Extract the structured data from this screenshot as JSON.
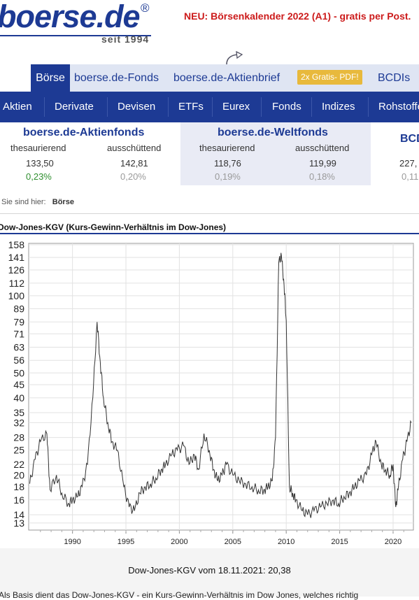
{
  "header": {
    "logo_text": "boerse.de",
    "logo_mark": "®",
    "since": "seit 1994",
    "promo": "NEU: Börsenkalender 2022 (A1) - gratis per Post."
  },
  "tabs": [
    {
      "label": "Börse",
      "active": true
    },
    {
      "label": "boerse.de-Fonds",
      "active": false
    },
    {
      "label": "boerse.de-Aktienbrief",
      "active": false
    },
    {
      "label": "BCDIs",
      "active": false
    }
  ],
  "tab_badge": "2x Gratis- PDF!",
  "nav": [
    "Aktien",
    "Derivate",
    "Devisen",
    "ETFs",
    "Eurex",
    "Fonds",
    "Indizes",
    "Rohstoffe"
  ],
  "funds": [
    {
      "title": "boerse.de-Aktienfonds",
      "sub": [
        "thesaurierend",
        "ausschüttend"
      ],
      "values": [
        "133,50",
        "142,81"
      ],
      "changes": [
        "0,23%",
        "0,20%"
      ]
    },
    {
      "title": "boerse.de-Weltfonds",
      "sub": [
        "thesaurierend",
        "ausschüttend"
      ],
      "values": [
        "118,76",
        "119,99"
      ],
      "changes": [
        "0,19%",
        "0,18%"
      ]
    },
    {
      "title": "BCDI",
      "values": [
        "227,"
      ],
      "changes": [
        "0,11"
      ]
    }
  ],
  "breadcrumb": {
    "prefix": "Sie sind hier:",
    "current": "Börse"
  },
  "chart_title": "Dow-Jones-KGV (Kurs-Gewinn-Verhältnis im Dow-Jones)",
  "chart_data": {
    "type": "line",
    "title": "Dow-Jones-KGV (Kurs-Gewinn-Verhältnis im Dow-Jones)",
    "y_scale": "log",
    "yticks": [
      158,
      141,
      126,
      112,
      100,
      89,
      79,
      71,
      63,
      56,
      50,
      45,
      40,
      35,
      32,
      28,
      25,
      22,
      20,
      18,
      16,
      14,
      13
    ],
    "xticks": [
      1990,
      1995,
      2000,
      2005,
      2010,
      2015,
      2020
    ],
    "xlim": [
      1985.9,
      2021.9
    ],
    "grid": true,
    "series": [
      {
        "x": [
          1986.0,
          1986.5,
          1987.0,
          1987.6,
          1987.9,
          1988.5,
          1989.0,
          1989.6,
          1990.0,
          1990.5,
          1990.9,
          1991.4,
          1991.9,
          1992.3,
          1992.6,
          1992.9,
          1993.3,
          1993.7,
          1994.2,
          1994.8,
          1995.3,
          1995.8,
          1996.3,
          1996.8,
          1997.3,
          1997.8,
          1998.3,
          1998.7,
          1999.3,
          1999.8,
          2000.4,
          2000.9,
          2001.4,
          2001.8,
          2002.3,
          2002.8,
          2003.2,
          2003.6,
          2004.0,
          2004.4,
          2005.0,
          2005.6,
          2006.2,
          2006.8,
          2007.4,
          2007.9,
          2008.3,
          2008.7,
          2009.0,
          2009.3,
          2009.55,
          2009.8,
          2010.0,
          2010.3,
          2010.6,
          2010.9,
          2011.5,
          2012.0,
          2012.6,
          2013.2,
          2013.8,
          2014.4,
          2014.9,
          2015.4,
          2015.9,
          2016.4,
          2016.9,
          2017.5,
          2018.0,
          2018.4,
          2018.9,
          2019.3,
          2019.7,
          2020.0,
          2020.25,
          2020.5,
          2020.9,
          2021.3,
          2021.7
        ],
        "y": [
          18.5,
          23,
          27,
          29,
          17.5,
          20,
          17,
          15.5,
          16,
          16.5,
          18,
          22,
          40,
          79,
          55,
          40,
          32,
          27,
          25,
          18,
          15,
          14.5,
          17,
          18,
          18.5,
          19.5,
          21,
          22,
          24,
          25,
          26,
          22,
          24,
          21,
          29,
          25,
          21,
          19,
          20,
          22,
          20,
          19,
          18.5,
          18,
          17.5,
          17.5,
          18,
          19,
          28,
          135,
          143,
          110,
          80,
          18,
          17,
          16,
          14.5,
          14,
          14.5,
          15,
          15.5,
          16,
          15.5,
          16.5,
          17,
          18,
          19,
          20,
          24,
          27,
          22,
          21,
          20,
          22,
          15,
          18,
          23,
          27,
          32
        ]
      }
    ]
  },
  "caption": "Dow-Jones-KGV vom 18.11.2021: 20,38",
  "bottom_text": "Als Basis dient das Dow-Jones-KGV - ein Kurs-Gewinn-Verhältnis im Dow Jones, welches richtig"
}
